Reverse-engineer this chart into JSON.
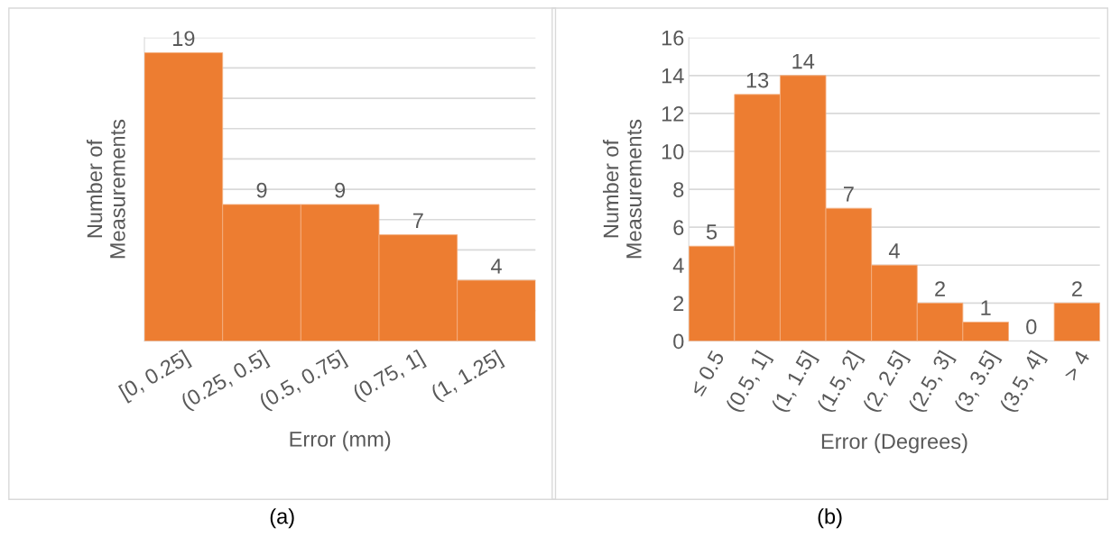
{
  "chart_data": [
    {
      "type": "bar",
      "xlabel": "Error (mm)",
      "ylabel": "Number of\nMeasurements",
      "categories": [
        "[0, 0.25]",
        "(0.25, 0.5]",
        "(0.5, 0.75]",
        "(0.75, 1]",
        "(1, 1.25]"
      ],
      "values": [
        19,
        9,
        9,
        7,
        4
      ],
      "color": "#ed7d31",
      "ylim": [
        0,
        20
      ],
      "yticks": [
        {
          "value": 0,
          "label": null
        },
        {
          "value": 2,
          "label": null
        },
        {
          "value": 4,
          "label": null
        },
        {
          "value": 6,
          "label": null
        },
        {
          "value": 8,
          "label": null
        },
        {
          "value": 10,
          "label": null
        },
        {
          "value": 12,
          "label": null
        },
        {
          "value": 14,
          "label": null
        },
        {
          "value": 16,
          "label": null
        },
        {
          "value": 18,
          "label": null
        },
        {
          "value": 20,
          "label": null
        }
      ],
      "tick_labels": "x",
      "grid": "y",
      "data_labels": true,
      "annotations": [
        "(a)"
      ]
    },
    {
      "type": "bar",
      "xlabel": "Error (Degrees)",
      "ylabel": "Number of\nMeasurements",
      "categories": [
        "≤ 0.5",
        "(0.5, 1]",
        "(1, 1.5]",
        "(1.5, 2]",
        "(2, 2.5]",
        "(2.5, 3]",
        "(3, 3.5]",
        "(3.5, 4]",
        "> 4"
      ],
      "values": [
        5,
        13,
        14,
        7,
        4,
        2,
        1,
        0,
        2
      ],
      "color": "#ed7d31",
      "ylim": [
        0,
        16
      ],
      "yticks": [
        0,
        2,
        4,
        6,
        8,
        10,
        12,
        14,
        16
      ],
      "grid": "y",
      "data_labels": true,
      "annotations": [
        "(b)"
      ]
    }
  ]
}
